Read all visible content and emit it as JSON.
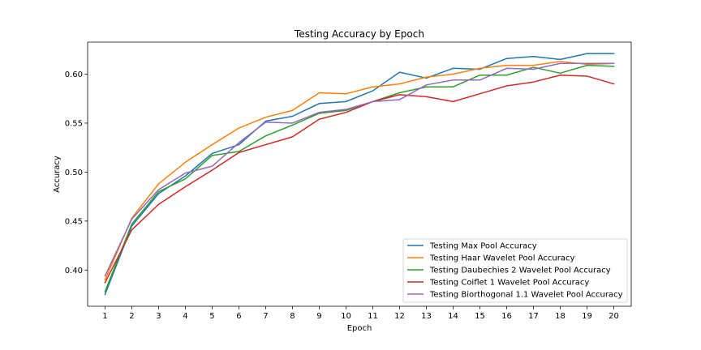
{
  "chart_data": {
    "type": "line",
    "title": "Testing Accuracy by Epoch",
    "xlabel": "Epoch",
    "ylabel": "Accuracy",
    "x": [
      1,
      2,
      3,
      4,
      5,
      6,
      7,
      8,
      9,
      10,
      11,
      12,
      13,
      14,
      15,
      16,
      17,
      18,
      19,
      20
    ],
    "xlim": [
      0.35,
      20.65
    ],
    "ylim": [
      0.363,
      0.6327
    ],
    "yticks": [
      "0.40",
      "0.45",
      "0.50",
      "0.55",
      "0.60"
    ],
    "yticks_values": [
      0.4,
      0.45,
      0.5,
      0.55,
      0.6
    ],
    "grid": false,
    "legend_position": "lower-right",
    "series": [
      {
        "name": "Testing Max Pool Accuracy",
        "color": "#1f77b4",
        "values": [
          0.375,
          0.445,
          0.478,
          0.496,
          0.519,
          0.528,
          0.552,
          0.557,
          0.57,
          0.572,
          0.583,
          0.602,
          0.596,
          0.606,
          0.605,
          0.616,
          0.618,
          0.615,
          0.621,
          0.621
        ]
      },
      {
        "name": "Testing Haar Wavelet Pool Accuracy",
        "color": "#ff7f0e",
        "values": [
          0.39,
          0.453,
          0.488,
          0.51,
          0.528,
          0.545,
          0.556,
          0.563,
          0.581,
          0.58,
          0.587,
          0.59,
          0.597,
          0.6,
          0.606,
          0.609,
          0.609,
          0.613,
          0.61,
          0.611
        ]
      },
      {
        "name": "Testing Daubechies 2 Wavelet Pool Accuracy",
        "color": "#2ca02c",
        "values": [
          0.378,
          0.447,
          0.48,
          0.493,
          0.517,
          0.521,
          0.537,
          0.548,
          0.56,
          0.563,
          0.572,
          0.581,
          0.587,
          0.587,
          0.599,
          0.599,
          0.607,
          0.601,
          0.609,
          0.608
        ]
      },
      {
        "name": "Testing Coiflet 1 Wavelet Pool Accuracy",
        "color": "#d62728",
        "values": [
          0.387,
          0.441,
          0.467,
          0.485,
          0.502,
          0.52,
          0.528,
          0.536,
          0.554,
          0.561,
          0.572,
          0.579,
          0.577,
          0.572,
          0.58,
          0.588,
          0.592,
          0.599,
          0.598,
          0.59
        ]
      },
      {
        "name": "Testing Biorthogonal 1.1 Wavelet Pool Accuracy",
        "color": "#9467bd",
        "values": [
          0.394,
          0.452,
          0.482,
          0.499,
          0.506,
          0.53,
          0.551,
          0.55,
          0.561,
          0.564,
          0.572,
          0.574,
          0.589,
          0.594,
          0.594,
          0.606,
          0.605,
          0.611,
          0.611,
          0.611
        ]
      }
    ]
  }
}
